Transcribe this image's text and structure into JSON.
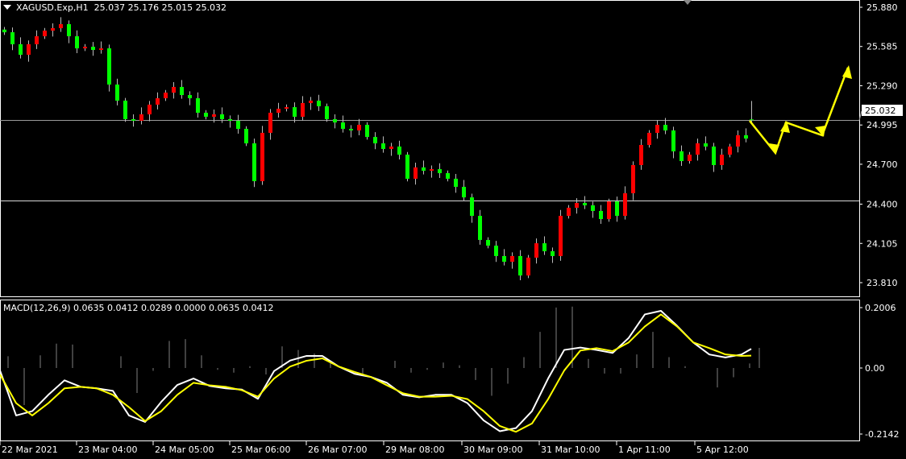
{
  "header": {
    "symbol": "XAGUSD.Exp,H1",
    "ohlc": "25.037 25.176 25.015 25.032"
  },
  "macd_header": {
    "label": "MACD(12,26,9) 0.0635 0.0412 0.0289 0.0000 0.0635 0.0412"
  },
  "colors": {
    "background": "#000000",
    "bull_candle": "#ff0000",
    "bear_candle": "#00ff00",
    "macd_main": "#ffffff",
    "macd_signal": "#ffff00",
    "histogram": "#808080",
    "annotation": "#ffff00",
    "grid_frame": "#ffffff"
  },
  "chart_data": [
    {
      "type": "candlestick",
      "symbol": "XAGUSD.Exp",
      "timeframe": "H1",
      "price_ticks": [
        "25.880",
        "25.585",
        "25.290",
        "24.995",
        "24.700",
        "24.400",
        "24.105",
        "23.810"
      ],
      "ylim": [
        23.81,
        25.88
      ],
      "current_price": "25.032",
      "horizontal_levels": [
        25.032,
        24.427
      ],
      "time_ticks": [
        "22 Mar 2021",
        "23 Mar 04:00",
        "24 Mar 05:00",
        "25 Mar 06:00",
        "26 Mar 07:00",
        "29 Mar 08:00",
        "30 Mar 09:00",
        "31 Mar 10:00",
        "1 Apr 11:00",
        "5 Apr 12:00"
      ],
      "closes": [
        25.692,
        25.602,
        25.523,
        25.602,
        25.662,
        25.704,
        25.723,
        25.753,
        25.662,
        25.571,
        25.583,
        25.559,
        25.571,
        25.299,
        25.178,
        25.039,
        25.027,
        25.075,
        25.148,
        25.196,
        25.238,
        25.281,
        25.22,
        25.196,
        25.087,
        25.057,
        25.075,
        25.039,
        25.027,
        24.966,
        24.857,
        24.573,
        24.936,
        25.087,
        25.117,
        25.129,
        25.057,
        25.16,
        25.178,
        25.136,
        25.039,
        25.014,
        24.966,
        24.954,
        24.996,
        24.905,
        24.857,
        24.815,
        24.833,
        24.772,
        24.591,
        24.676,
        24.651,
        24.663,
        24.633,
        24.591,
        24.53,
        24.451,
        24.312,
        24.131,
        24.088,
        24.01,
        23.967,
        24.01,
        23.864,
        23.998,
        24.106,
        24.046,
        24.01,
        24.312,
        24.373,
        24.409,
        24.391,
        24.349,
        24.288,
        24.421,
        24.312,
        24.482,
        24.694,
        24.845,
        24.936,
        24.996,
        24.954,
        24.797,
        24.724,
        24.772,
        24.857,
        24.833,
        24.694,
        24.772,
        24.833,
        24.918,
        24.893,
        25.032
      ],
      "last_bar": {
        "open": 25.037,
        "high": 25.176,
        "low": 25.015,
        "close": 25.032
      }
    },
    {
      "type": "line",
      "indicator": "MACD(12,26,9)",
      "y_ticks": [
        "0.2006",
        "0.00",
        "-0.2142"
      ],
      "ylim": [
        -0.2142,
        0.2006
      ],
      "series": [
        {
          "name": "MACD",
          "values": [
            -0.008,
            -0.154,
            -0.14,
            -0.087,
            -0.04,
            -0.061,
            -0.066,
            -0.074,
            -0.154,
            -0.175,
            -0.11,
            -0.055,
            -0.034,
            -0.058,
            -0.066,
            -0.07,
            -0.1,
            -0.01,
            0.025,
            0.04,
            0.04,
            0.005,
            -0.019,
            -0.029,
            -0.048,
            -0.087,
            -0.095,
            -0.087,
            -0.087,
            -0.114,
            -0.17,
            -0.205,
            -0.195,
            -0.14,
            -0.034,
            0.06,
            0.068,
            0.06,
            0.05,
            0.1,
            0.178,
            0.19,
            0.14,
            0.085,
            0.045,
            0.035,
            0.045,
            0.0635
          ]
        },
        {
          "name": "Signal",
          "values": [
            -0.021,
            -0.114,
            -0.154,
            -0.114,
            -0.066,
            -0.061,
            -0.066,
            -0.087,
            -0.127,
            -0.172,
            -0.14,
            -0.087,
            -0.048,
            -0.056,
            -0.061,
            -0.072,
            -0.093,
            -0.034,
            0.005,
            0.024,
            0.032,
            0.005,
            -0.013,
            -0.029,
            -0.056,
            -0.082,
            -0.093,
            -0.093,
            -0.09,
            -0.101,
            -0.14,
            -0.188,
            -0.207,
            -0.18,
            -0.101,
            -0.008,
            0.058,
            0.066,
            0.056,
            0.085,
            0.138,
            0.178,
            0.138,
            0.085,
            0.066,
            0.045,
            0.04,
            0.0412
          ]
        }
      ]
    }
  ]
}
